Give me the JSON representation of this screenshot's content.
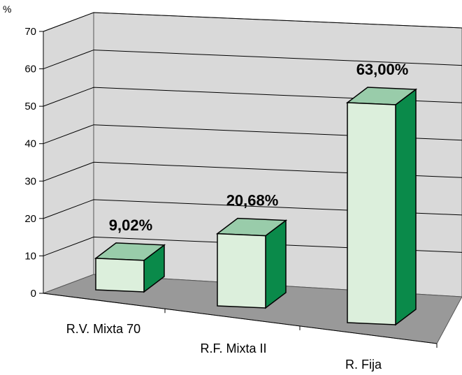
{
  "chart_data": {
    "type": "bar",
    "y_unit": "%",
    "categories": [
      "R.V. Mixta 70",
      "R.F. Mixta II",
      "R. Fija"
    ],
    "values": [
      9.02,
      20.68,
      63.0
    ],
    "data_labels": [
      "9,02%",
      "20,68%",
      "63,00%"
    ],
    "ylim": [
      0,
      70
    ],
    "yticks": [
      0,
      10,
      20,
      30,
      40,
      50,
      60,
      70
    ],
    "grid": true,
    "three_d": true,
    "colors": {
      "wall": "#d9d9d9",
      "floor": "#999999",
      "bar_front": "#dcefdc",
      "bar_top": "#99ccaa",
      "bar_side": "#0a8a4a",
      "gridline": "#000000"
    }
  }
}
